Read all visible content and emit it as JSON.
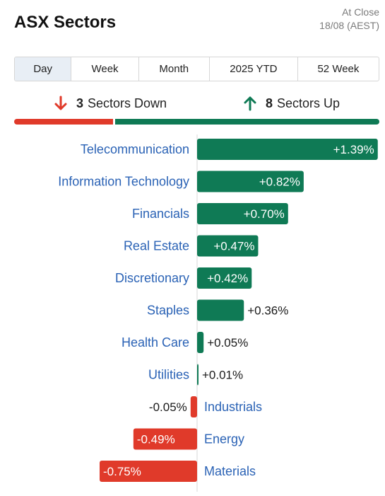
{
  "header": {
    "title": "ASX Sectors",
    "status_line1": "At Close",
    "status_line2": "18/08 (AEST)"
  },
  "tabs": [
    {
      "label": "Day",
      "active": true
    },
    {
      "label": "Week",
      "active": false
    },
    {
      "label": "Month",
      "active": false
    },
    {
      "label": "2025 YTD",
      "active": false
    },
    {
      "label": "52 Week",
      "active": false
    }
  ],
  "summary": {
    "down_count": "3",
    "down_label": "Sectors Down",
    "up_count": "8",
    "up_label": "Sectors Up"
  },
  "colors": {
    "up": "#0f7a55",
    "down": "#e03a2a",
    "sector_label": "#2a62b5"
  },
  "chart_data": {
    "type": "bar",
    "orientation": "horizontal",
    "categories": [
      "Telecommunication",
      "Information Technology",
      "Financials",
      "Real Estate",
      "Discretionary",
      "Staples",
      "Health Care",
      "Utilities",
      "Industrials",
      "Energy",
      "Materials"
    ],
    "values": [
      1.39,
      0.82,
      0.7,
      0.47,
      0.42,
      0.36,
      0.05,
      0.01,
      -0.05,
      -0.49,
      -0.75
    ],
    "value_labels": [
      "+1.39%",
      "+0.82%",
      "+0.70%",
      "+0.47%",
      "+0.42%",
      "+0.36%",
      "+0.05%",
      "+0.01%",
      "-0.05%",
      "-0.49%",
      "-0.75%"
    ],
    "unit": "%"
  }
}
